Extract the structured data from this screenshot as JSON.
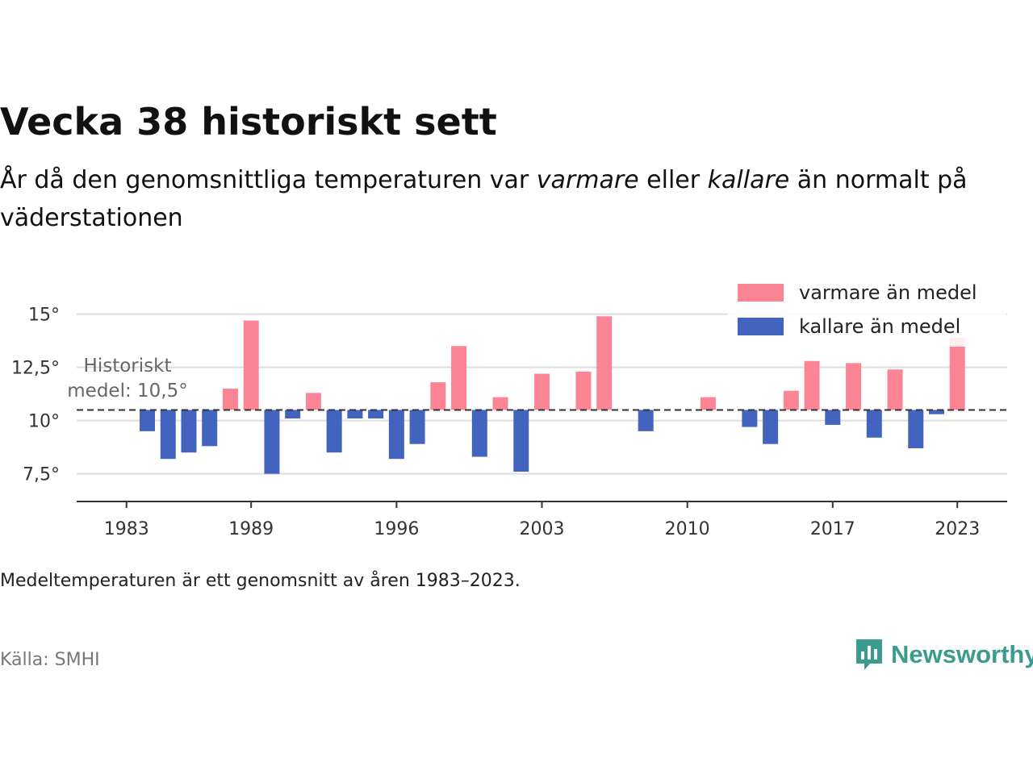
{
  "title": "Vecka 38 historiskt sett",
  "subtitle": {
    "part1": "År då den genomsnittliga temperaturen var ",
    "warm_word": "varmare",
    "part2": " eller ",
    "cold_word": "kallare",
    "part3": " än normalt på väderstationen"
  },
  "note": "Medeltemperaturen är ett genomsnitt av åren 1983–2023.",
  "source": "Källa: SMHI",
  "brand": {
    "name": "Newsworthy",
    "icon": "newsworthy-bar-chart-icon"
  },
  "colors": {
    "warm": "#fb8595",
    "cold": "#4264bf",
    "mean_line": "#333333",
    "grid": "#dddddd",
    "brand": "#3a9b8f"
  },
  "chart_data": {
    "type": "bar",
    "x": [
      1983,
      1984,
      1985,
      1986,
      1987,
      1988,
      1989,
      1990,
      1991,
      1992,
      1993,
      1994,
      1995,
      1996,
      1997,
      1998,
      1999,
      2000,
      2001,
      2002,
      2003,
      2004,
      2005,
      2006,
      2007,
      2008,
      2009,
      2010,
      2011,
      2012,
      2013,
      2014,
      2015,
      2016,
      2017,
      2018,
      2019,
      2020,
      2021,
      2022,
      2023
    ],
    "values": [
      10.5,
      9.5,
      8.2,
      8.5,
      8.8,
      11.5,
      14.7,
      7.5,
      10.1,
      11.3,
      8.5,
      10.1,
      10.1,
      8.2,
      8.9,
      11.8,
      13.5,
      8.3,
      11.1,
      7.6,
      12.2,
      10.5,
      12.3,
      14.9,
      10.5,
      9.5,
      10.5,
      10.5,
      11.1,
      10.5,
      9.7,
      8.9,
      11.4,
      12.8,
      9.8,
      12.7,
      9.2,
      12.4,
      8.7,
      10.3,
      13.9
    ],
    "mean": 10.5,
    "mean_label": [
      "Historiskt",
      "medel: 10,5°"
    ],
    "yticks": [
      7.5,
      10,
      12.5,
      15
    ],
    "ytick_labels": [
      "7,5°",
      "10°",
      "12,5°",
      "15°"
    ],
    "xticks": [
      1983,
      1989,
      1996,
      2003,
      2010,
      2017,
      2023
    ],
    "xtick_labels": [
      "1983",
      "1989",
      "1996",
      "2003",
      "2010",
      "2017",
      "2023"
    ],
    "ylim": [
      6.2,
      16.5
    ],
    "xlim": [
      1980.6,
      2025.4
    ],
    "grid": true,
    "legend": [
      {
        "name": "varmare än medel",
        "color": "#fb8595"
      },
      {
        "name": "kallare än medel",
        "color": "#4264bf"
      }
    ],
    "legend_position": "top-right"
  }
}
